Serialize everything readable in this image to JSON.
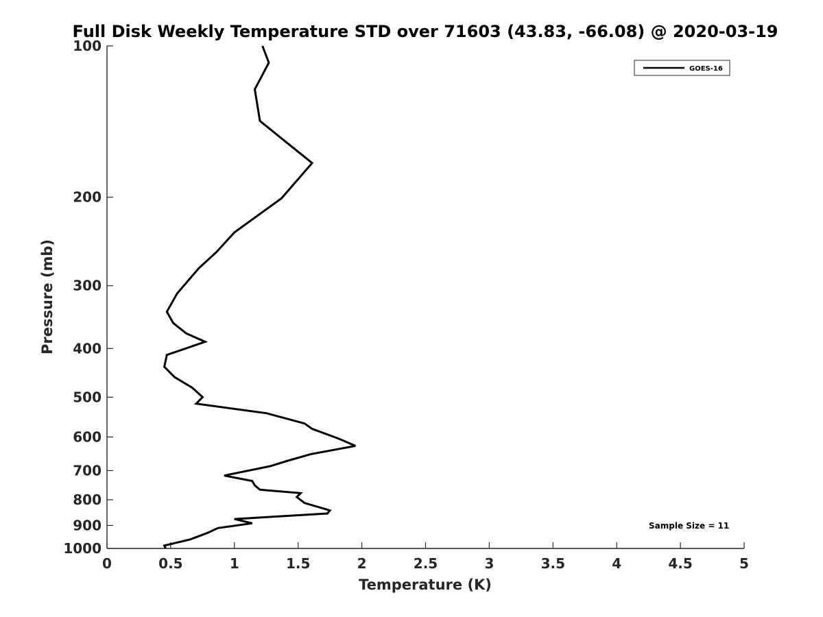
{
  "chart_data": {
    "type": "line",
    "title": "Full Disk Weekly Temperature STD over 71603 (43.83, -66.08) @ 2020-03-19",
    "xlabel": "Temperature (K)",
    "ylabel": "Pressure (mb)",
    "xlim": [
      0,
      5
    ],
    "ylim": [
      100,
      1000
    ],
    "yscale": "log",
    "y_reversed": true,
    "xticks": [
      0,
      0.5,
      1,
      1.5,
      2,
      2.5,
      3,
      3.5,
      4,
      4.5,
      5
    ],
    "xtick_labels": [
      "0",
      "0.5",
      "1",
      "1.5",
      "2",
      "2.5",
      "3",
      "3.5",
      "4",
      "4.5",
      "5"
    ],
    "yticks": [
      100,
      200,
      300,
      400,
      500,
      600,
      700,
      800,
      900,
      1000
    ],
    "ytick_labels": [
      "100",
      "200",
      "300",
      "400",
      "500",
      "600",
      "700",
      "800",
      "900",
      "1000"
    ],
    "grid": false,
    "legend_position": "top-right",
    "series": [
      {
        "name": "GOES-16",
        "color": "#000000",
        "x": [
          1.22,
          1.27,
          1.16,
          1.2,
          1.61,
          1.37,
          1.0,
          0.86,
          0.72,
          0.55,
          0.47,
          0.52,
          0.62,
          0.77,
          0.47,
          0.45,
          0.53,
          0.67,
          0.75,
          0.7,
          1.25,
          1.55,
          1.61,
          1.82,
          1.95,
          1.6,
          1.42,
          1.28,
          0.92,
          1.14,
          1.16,
          1.2,
          1.52,
          1.49,
          1.55,
          1.75,
          1.73,
          1.0,
          1.14,
          0.87,
          0.79,
          0.65,
          0.45,
          0.46
        ],
        "y": [
          100,
          108,
          122,
          141,
          171,
          201,
          235,
          257,
          277,
          311,
          338,
          356,
          373,
          388,
          412,
          435,
          456,
          479,
          500,
          515,
          538,
          564,
          578,
          605,
          625,
          649,
          669,
          686,
          716,
          734,
          749,
          764,
          776,
          790,
          812,
          840,
          852,
          874,
          891,
          911,
          931,
          960,
          987,
          1000
        ]
      }
    ],
    "annotations": [
      "Sample Size = 11"
    ]
  }
}
